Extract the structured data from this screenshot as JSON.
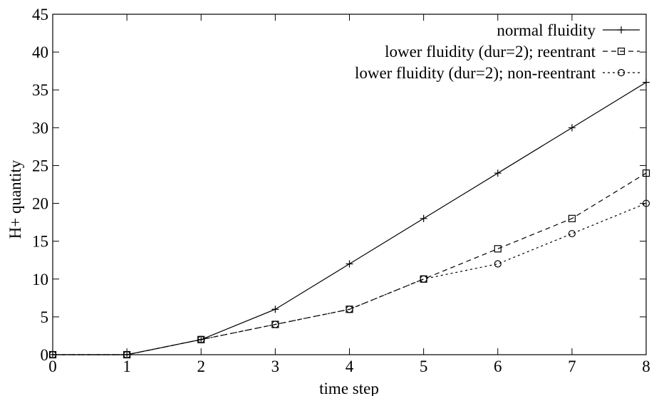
{
  "chart_data": {
    "type": "line",
    "title": "",
    "xlabel": "time step",
    "ylabel": "H+ quantity",
    "xlim": [
      0,
      8
    ],
    "ylim": [
      0,
      45
    ],
    "xticks": [
      0,
      1,
      2,
      3,
      4,
      5,
      6,
      7,
      8
    ],
    "yticks": [
      0,
      5,
      10,
      15,
      20,
      25,
      30,
      35,
      40,
      45
    ],
    "grid": false,
    "legend_position": "top-right",
    "x": [
      0,
      1,
      2,
      3,
      4,
      5,
      6,
      7,
      8
    ],
    "series": [
      {
        "name": "normal fluidity",
        "marker": "plus",
        "line": "solid",
        "color": "#000000",
        "values": [
          0,
          0,
          2,
          6,
          12,
          18,
          24,
          30,
          36
        ]
      },
      {
        "name": "lower fluidity (dur=2); reentrant",
        "marker": "square",
        "line": "dashed",
        "color": "#000000",
        "values": [
          0,
          0,
          2,
          4,
          6,
          10,
          14,
          18,
          24
        ]
      },
      {
        "name": "lower fluidity (dur=2); non-reentrant",
        "marker": "circle",
        "line": "dotted",
        "color": "#000000",
        "values": [
          0,
          0,
          2,
          4,
          6,
          10,
          12,
          16,
          20
        ]
      }
    ]
  }
}
